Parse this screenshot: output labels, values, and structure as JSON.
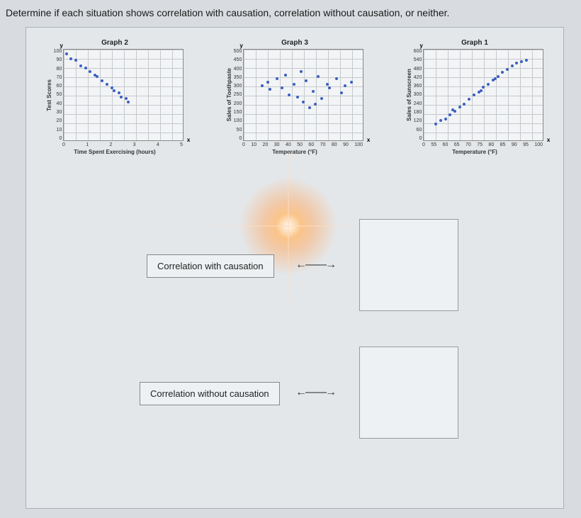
{
  "prompt": "Determine if each situation shows correlation with causation, correlation without causation, or neither.",
  "graphs": [
    {
      "title": "Graph 2",
      "ylabel": "Test Scores",
      "xlabel": "Time Spent Exercising (hours)",
      "ylim": [
        0,
        100
      ],
      "yticks": [
        "100",
        "90",
        "80",
        "70",
        "60",
        "50",
        "40",
        "30",
        "20",
        "10",
        "0"
      ],
      "xlim": [
        0,
        5
      ],
      "xticks": [
        "0",
        "1",
        "2",
        "3",
        "4",
        "5"
      ],
      "grid_x": 10,
      "grid_y": 10,
      "point_color": "#3a5fbf",
      "points": [
        [
          0.1,
          95
        ],
        [
          0.3,
          90
        ],
        [
          0.5,
          88
        ],
        [
          0.7,
          82
        ],
        [
          0.9,
          80
        ],
        [
          1.1,
          76
        ],
        [
          1.3,
          72
        ],
        [
          1.4,
          70
        ],
        [
          1.6,
          66
        ],
        [
          1.8,
          62
        ],
        [
          2.0,
          58
        ],
        [
          2.1,
          55
        ],
        [
          2.3,
          52
        ],
        [
          2.4,
          48
        ],
        [
          2.6,
          46
        ],
        [
          2.7,
          42
        ]
      ]
    },
    {
      "title": "Graph 3",
      "ylabel": "Sales of Toothpaste",
      "xlabel": "Temperature (°F)",
      "ylim": [
        0,
        500
      ],
      "yticks": [
        "500",
        "450",
        "400",
        "350",
        "300",
        "250",
        "200",
        "150",
        "100",
        "50",
        "0"
      ],
      "xlim": [
        0,
        100
      ],
      "xticks": [
        "0",
        "10",
        "20",
        "30",
        "40",
        "50",
        "60",
        "70",
        "80",
        "90",
        "100"
      ],
      "grid_x": 10,
      "grid_y": 10,
      "point_color": "#3a5fbf",
      "points": [
        [
          15,
          300
        ],
        [
          20,
          320
        ],
        [
          22,
          280
        ],
        [
          28,
          340
        ],
        [
          32,
          290
        ],
        [
          35,
          360
        ],
        [
          38,
          250
        ],
        [
          42,
          310
        ],
        [
          48,
          380
        ],
        [
          50,
          210
        ],
        [
          52,
          330
        ],
        [
          58,
          270
        ],
        [
          62,
          350
        ],
        [
          65,
          230
        ],
        [
          70,
          310
        ],
        [
          72,
          290
        ],
        [
          78,
          340
        ],
        [
          82,
          260
        ],
        [
          85,
          300
        ],
        [
          90,
          320
        ],
        [
          55,
          180
        ],
        [
          45,
          240
        ],
        [
          60,
          200
        ]
      ]
    },
    {
      "title": "Graph 1",
      "ylabel": "Sales of Sunscreen",
      "xlabel": "Temperature (°F)",
      "ylim": [
        0,
        600
      ],
      "yticks": [
        "600",
        "540",
        "480",
        "420",
        "360",
        "300",
        "240",
        "180",
        "120",
        "60",
        "0"
      ],
      "xlim": [
        50,
        100
      ],
      "xticks": [
        "0",
        "55",
        "60",
        "65",
        "70",
        "75",
        "80",
        "85",
        "90",
        "95",
        "100"
      ],
      "grid_x": 10,
      "grid_y": 10,
      "point_color": "#3a5fbf",
      "points": [
        [
          55,
          110
        ],
        [
          57,
          130
        ],
        [
          59,
          140
        ],
        [
          61,
          170
        ],
        [
          63,
          190
        ],
        [
          65,
          220
        ],
        [
          67,
          240
        ],
        [
          69,
          270
        ],
        [
          71,
          300
        ],
        [
          73,
          320
        ],
        [
          75,
          350
        ],
        [
          77,
          370
        ],
        [
          79,
          400
        ],
        [
          81,
          420
        ],
        [
          83,
          450
        ],
        [
          85,
          470
        ],
        [
          87,
          490
        ],
        [
          89,
          510
        ],
        [
          91,
          520
        ],
        [
          93,
          530
        ],
        [
          62,
          200
        ],
        [
          74,
          330
        ],
        [
          80,
          410
        ]
      ]
    }
  ],
  "labels": {
    "with": "Correlation with causation",
    "without": "Correlation without causation"
  },
  "arrow_glyph": "⟷",
  "colors": {
    "page_bg": "#d8dce0",
    "panel_bg": "#e4e7ea",
    "box_bg": "#eef1f3",
    "border": "#888",
    "grid": "#c6c9cc",
    "point": "#3a5fbf"
  }
}
